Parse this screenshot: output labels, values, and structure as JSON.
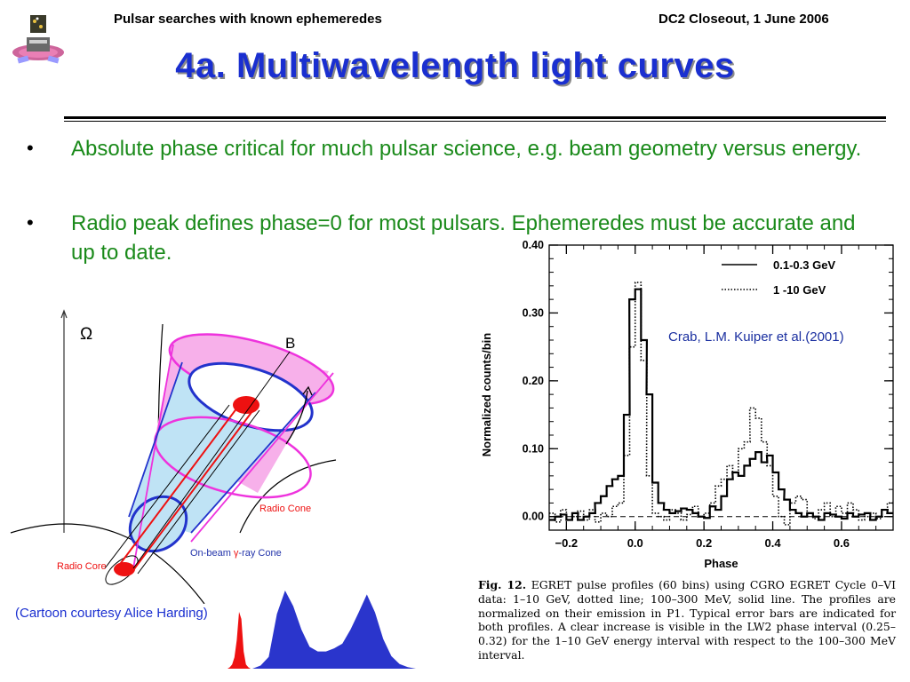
{
  "header": {
    "left": "Pulsar searches with known ephemeredes",
    "right": "DC2 Closeout, 1 June 2006"
  },
  "title": "4a. Multiwavelength light curves",
  "bullets": [
    {
      "marker": "•",
      "text": "Absolute phase critical for much pulsar science, e.g. beam geometry versus energy."
    },
    {
      "marker": "•",
      "text": "Radio peak defines phase=0 for most pulsars. Ephemeredes must be accurate and up to date."
    }
  ],
  "cartoon": {
    "omega_label": "Ω",
    "b_label": "B",
    "radio_cone_label": "Radio Cone",
    "radio_core_label": "Radio Core",
    "gamma_cone_prefix": "On-beam ",
    "gamma_symbol": "γ",
    "gamma_cone_suffix": "-ray Cone",
    "credit": "(Cartoon courtesy Alice Harding)"
  },
  "crab_label": "Crab, L.M. Kuiper et al.(2001)",
  "figure_caption": {
    "figno": "Fig. 12.",
    "text": "EGRET pulse profiles (60 bins) using CGRO EGRET Cycle 0–VI data: 1–10 GeV, dotted line; 100–300 MeV, solid line. The profiles are normalized on their emission in P1. Typical error bars are indicated for both profiles. A clear increase is visible in the LW2 phase interval (0.25–0.32) for the 1–10 GeV energy interval with respect to the 100–300 MeV interval."
  },
  "chart_data": [
    {
      "type": "line",
      "title": "",
      "xlabel": "Phase",
      "ylabel": "Normalized counts/bin",
      "xlim": [
        -0.25,
        0.75
      ],
      "ylim": [
        -0.02,
        0.4
      ],
      "x_ticks": [
        "-0.2",
        "0.0",
        "0.2",
        "0.4",
        "0.6"
      ],
      "y_ticks": [
        "0.00",
        "0.10",
        "0.20",
        "0.30",
        "0.40"
      ],
      "x_tick_values": [
        -0.2,
        0.0,
        0.2,
        0.4,
        0.6
      ],
      "y_tick_values": [
        0.0,
        0.1,
        0.2,
        0.3,
        0.4
      ],
      "legend_position": "top-right",
      "baseline": 0.0,
      "step": true,
      "series": [
        {
          "name": "0.1-0.3 GeV",
          "style": "solid",
          "x": [
            -0.25,
            -0.233,
            -0.217,
            -0.2,
            -0.183,
            -0.167,
            -0.15,
            -0.133,
            -0.117,
            -0.1,
            -0.083,
            -0.067,
            -0.05,
            -0.033,
            -0.017,
            0.0,
            0.017,
            0.033,
            0.05,
            0.067,
            0.083,
            0.1,
            0.117,
            0.133,
            0.15,
            0.167,
            0.183,
            0.2,
            0.217,
            0.233,
            0.25,
            0.267,
            0.283,
            0.3,
            0.317,
            0.333,
            0.35,
            0.367,
            0.383,
            0.4,
            0.417,
            0.433,
            0.45,
            0.467,
            0.483,
            0.5,
            0.517,
            0.533,
            0.55,
            0.567,
            0.583,
            0.6,
            0.617,
            0.633,
            0.65,
            0.667,
            0.683,
            0.7,
            0.717,
            0.733
          ],
          "y": [
            -0.005,
            0.0,
            0.003,
            -0.005,
            0.005,
            -0.005,
            0.0,
            0.005,
            0.02,
            0.03,
            0.045,
            0.055,
            0.06,
            0.15,
            0.32,
            0.335,
            0.26,
            0.18,
            0.05,
            0.02,
            0.01,
            0.005,
            0.008,
            0.012,
            0.01,
            0.005,
            0.0,
            -0.002,
            0.015,
            0.01,
            0.03,
            0.055,
            0.065,
            0.06,
            0.075,
            0.085,
            0.095,
            0.08,
            0.09,
            0.065,
            0.04,
            0.025,
            0.01,
            0.005,
            0.0,
            0.005,
            0.0,
            -0.005,
            0.005,
            0.003,
            0.0,
            -0.003,
            0.005,
            0.0,
            0.003,
            0.005,
            -0.005,
            0.0,
            0.01,
            0.005
          ]
        },
        {
          "name": "1 -10 GeV",
          "style": "dotted",
          "x": [
            -0.25,
            -0.233,
            -0.217,
            -0.2,
            -0.183,
            -0.167,
            -0.15,
            -0.133,
            -0.117,
            -0.1,
            -0.083,
            -0.067,
            -0.05,
            -0.033,
            -0.017,
            0.0,
            0.017,
            0.033,
            0.05,
            0.067,
            0.083,
            0.1,
            0.117,
            0.133,
            0.15,
            0.167,
            0.183,
            0.2,
            0.217,
            0.233,
            0.25,
            0.267,
            0.283,
            0.3,
            0.317,
            0.333,
            0.35,
            0.367,
            0.383,
            0.4,
            0.417,
            0.433,
            0.45,
            0.467,
            0.483,
            0.5,
            0.517,
            0.533,
            0.55,
            0.567,
            0.583,
            0.6,
            0.617,
            0.633,
            0.65,
            0.667,
            0.683,
            0.7,
            0.717,
            0.733
          ],
          "y": [
            0.005,
            -0.008,
            0.01,
            -0.005,
            0.0,
            0.008,
            -0.005,
            0.01,
            -0.008,
            0.005,
            0.0,
            0.015,
            0.02,
            0.09,
            0.25,
            0.345,
            0.23,
            0.06,
            0.005,
            0.0,
            -0.005,
            0.01,
            0.005,
            -0.005,
            0.003,
            0.015,
            0.0,
            0.005,
            0.02,
            0.045,
            0.055,
            0.075,
            0.065,
            0.1,
            0.11,
            0.16,
            0.145,
            0.11,
            0.075,
            0.03,
            0.0,
            -0.012,
            0.02,
            0.03,
            0.025,
            0.005,
            -0.003,
            0.01,
            0.02,
            0.0,
            0.015,
            0.005,
            0.02,
            0.01,
            -0.005,
            0.0,
            0.005,
            -0.003,
            0.01,
            0.02
          ]
        }
      ]
    },
    {
      "type": "area",
      "title": "",
      "xlabel": "",
      "ylabel": "",
      "series": [
        {
          "name": "",
          "color": "#ee1111",
          "x": [
            0,
            1,
            2,
            3,
            4,
            5,
            6,
            7,
            8,
            9,
            10
          ],
          "y": [
            0,
            0.01,
            0.03,
            0.08,
            0.2,
            0.4,
            0.35,
            0.12,
            0.03,
            0.01,
            0
          ]
        },
        {
          "name": "",
          "color": "#2a35cc",
          "x": [
            0,
            2,
            4,
            6,
            8,
            10,
            12,
            14,
            16,
            18,
            20,
            22,
            24,
            26,
            28,
            30,
            32,
            34,
            36,
            38,
            40
          ],
          "y": [
            0,
            0.04,
            0.15,
            0.7,
            1.0,
            0.8,
            0.5,
            0.28,
            0.22,
            0.22,
            0.26,
            0.32,
            0.5,
            0.72,
            0.95,
            0.72,
            0.38,
            0.16,
            0.06,
            0.02,
            0
          ]
        }
      ]
    }
  ]
}
